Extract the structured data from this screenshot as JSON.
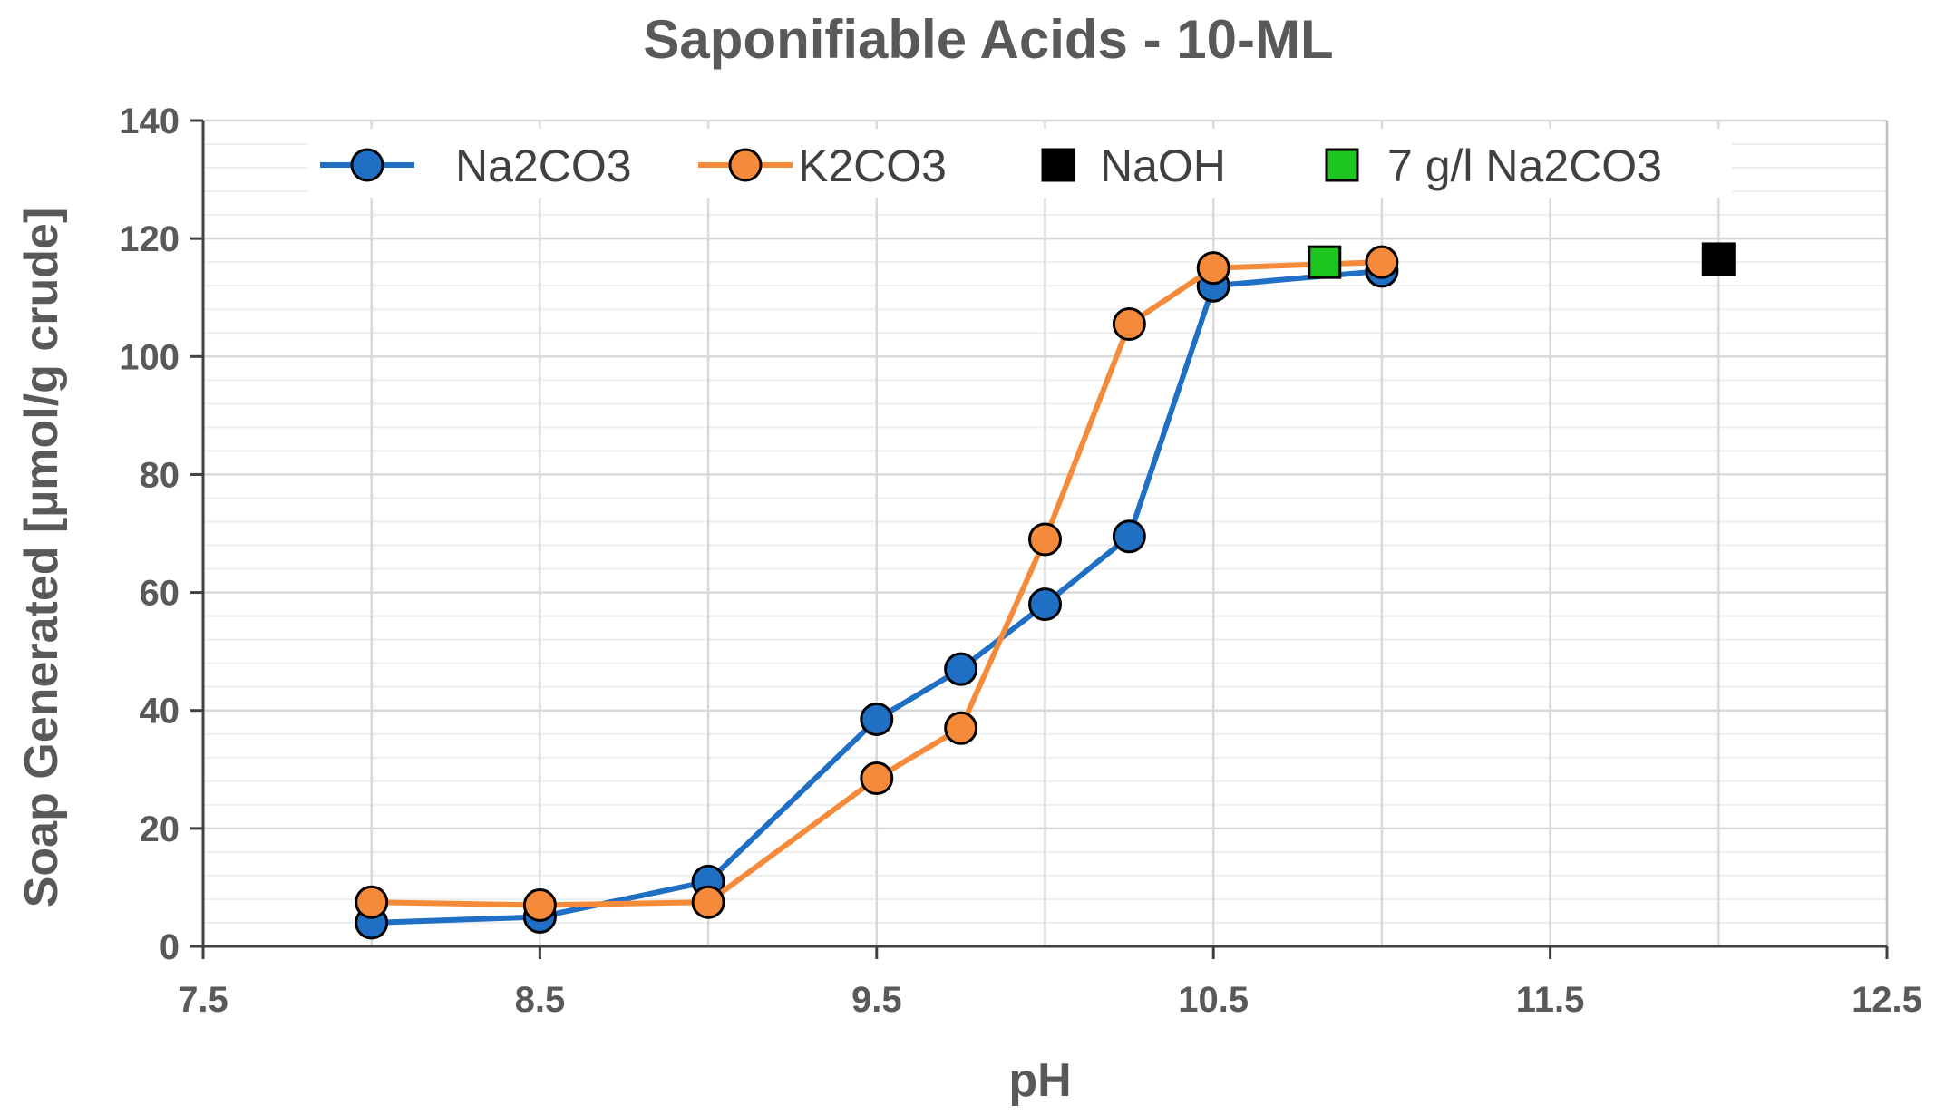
{
  "chart_data": {
    "type": "scatter",
    "title": "Saponifiable Acids - 10-ML",
    "xlabel": "pH",
    "ylabel": "Soap Generated [µmol/g crude]",
    "xlim": [
      7.5,
      12.5
    ],
    "ylim": [
      0,
      140
    ],
    "x_ticks": [
      "7.5",
      "8.5",
      "9.5",
      "10.5",
      "11.5",
      "12.5"
    ],
    "y_ticks": [
      "0",
      "20",
      "40",
      "60",
      "80",
      "100",
      "120",
      "140"
    ],
    "grid": true,
    "legend_position": "top",
    "series": [
      {
        "name": "Na2CO3",
        "style": "line-circle",
        "color": "#1F6FC5",
        "x": [
          8.0,
          8.5,
          9.0,
          9.5,
          9.75,
          10.0,
          10.25,
          10.5,
          11.0
        ],
        "y": [
          4,
          5,
          11,
          38.5,
          47,
          58,
          69.5,
          112,
          114.5
        ]
      },
      {
        "name": "K2CO3",
        "style": "line-circle",
        "color": "#F58A3A",
        "x": [
          8.0,
          8.5,
          9.0,
          9.5,
          9.75,
          10.0,
          10.25,
          10.5,
          11.0
        ],
        "y": [
          7.5,
          7,
          7.5,
          28.5,
          37,
          69,
          105.5,
          115,
          116
        ]
      },
      {
        "name": "NaOH",
        "style": "square",
        "color": "#000000",
        "x": [
          12.0
        ],
        "y": [
          116.5
        ]
      },
      {
        "name": "7 g/l Na2CO3",
        "style": "square",
        "color": "#1EC51E",
        "x": [
          10.83
        ],
        "y": [
          116
        ]
      }
    ]
  }
}
